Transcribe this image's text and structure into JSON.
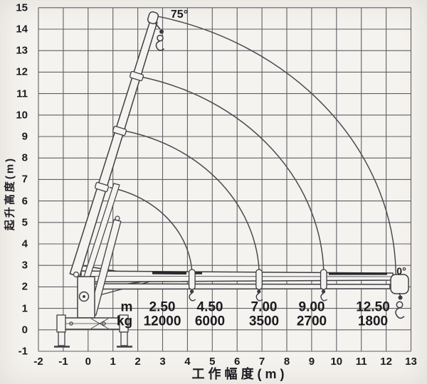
{
  "figure": {
    "y_axis_title": "起升高度(m)",
    "x_axis_title": "工作幅度(m)",
    "max_boom_angle_label": "75°",
    "min_boom_angle_label": "0°"
  },
  "axes": {
    "x_ticks": [
      "-2",
      "-1",
      "0",
      "1",
      "2",
      "3",
      "4",
      "5",
      "6",
      "7",
      "8",
      "9",
      "10",
      "11",
      "12",
      "13"
    ],
    "y_ticks": [
      "15",
      "14",
      "13",
      "12",
      "11",
      "10",
      "9",
      "8",
      "7",
      "6",
      "5",
      "4",
      "3",
      "2",
      "1",
      "0",
      "-1"
    ]
  },
  "load_table": {
    "radius_row_label": "m",
    "capacity_row_label": "kg",
    "columns": [
      {
        "radius_m": "2.50",
        "capacity_kg": "12000"
      },
      {
        "radius_m": "4.50",
        "capacity_kg": "6000"
      },
      {
        "radius_m": "7.00",
        "capacity_kg": "3500"
      },
      {
        "radius_m": "9.00",
        "capacity_kg": "2700"
      },
      {
        "radius_m": "12.50",
        "capacity_kg": "1800"
      }
    ]
  },
  "chart_data": {
    "type": "line",
    "xlabel": "工作幅度(m)",
    "ylabel": "起升高度(m)",
    "xlim": [
      -2,
      13
    ],
    "ylim": [
      -1,
      15
    ],
    "grid": true,
    "boom_pivot_xy_m": [
      0,
      2.4
    ],
    "boom_angle_deg_range": [
      0,
      75
    ],
    "boom_tip_arc_radii_m": [
      4.3,
      7.0,
      9.6,
      12.5
    ],
    "rated_load": {
      "radius_m": [
        2.5,
        4.5,
        7.0,
        9.0,
        12.5
      ],
      "capacity_kg": [
        12000,
        6000,
        3500,
        2700,
        1800
      ]
    },
    "annotations": [
      "75°",
      "0°"
    ]
  },
  "colors": {
    "background": "#f5f3ef",
    "line_ink": "#45454b",
    "text_ink": "#1b1b1f"
  }
}
